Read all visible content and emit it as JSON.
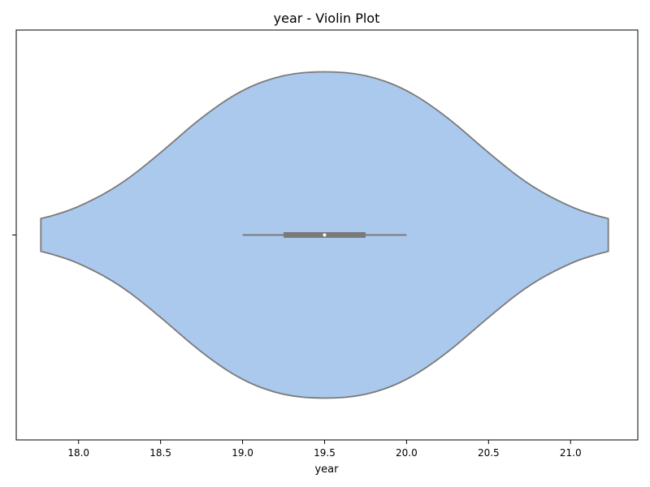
{
  "chart_data": {
    "type": "violin",
    "orientation": "horizontal",
    "title": "year - Violin Plot",
    "xlabel": "year",
    "ylabel": "",
    "xlim": [
      17.62,
      21.41
    ],
    "xticks": [
      {
        "value": 18.0,
        "label": "18.0"
      },
      {
        "value": 18.5,
        "label": "18.5"
      },
      {
        "value": 19.0,
        "label": "19.0"
      },
      {
        "value": 19.5,
        "label": "19.5"
      },
      {
        "value": 20.0,
        "label": "20.0"
      },
      {
        "value": 20.5,
        "label": "20.5"
      },
      {
        "value": 21.0,
        "label": "21.0"
      }
    ],
    "yticks": [
      ""
    ],
    "grid": false,
    "colors": {
      "fill": "#abc9ed",
      "edge": "#7a7a7a",
      "box": "#7a7a7a",
      "median": "#ffffff",
      "axis": "#000000"
    },
    "violin": {
      "min": 17.77,
      "max": 21.23,
      "relative_widths": [
        {
          "x": 17.77,
          "w": 0.1
        },
        {
          "x": 17.85,
          "w": 0.12
        },
        {
          "x": 18.0,
          "w": 0.17
        },
        {
          "x": 18.25,
          "w": 0.3
        },
        {
          "x": 18.5,
          "w": 0.5
        },
        {
          "x": 18.75,
          "w": 0.72
        },
        {
          "x": 19.0,
          "w": 0.89
        },
        {
          "x": 19.25,
          "w": 0.98
        },
        {
          "x": 19.5,
          "w": 1.0
        },
        {
          "x": 19.75,
          "w": 0.98
        },
        {
          "x": 20.0,
          "w": 0.89
        },
        {
          "x": 20.25,
          "w": 0.72
        },
        {
          "x": 20.5,
          "w": 0.5
        },
        {
          "x": 20.75,
          "w": 0.3
        },
        {
          "x": 21.0,
          "w": 0.17
        },
        {
          "x": 21.15,
          "w": 0.12
        },
        {
          "x": 21.23,
          "w": 0.1
        }
      ]
    },
    "box": {
      "whisker_low": 19.0,
      "q1": 19.25,
      "median": 19.5,
      "q3": 19.75,
      "whisker_high": 20.0
    }
  }
}
